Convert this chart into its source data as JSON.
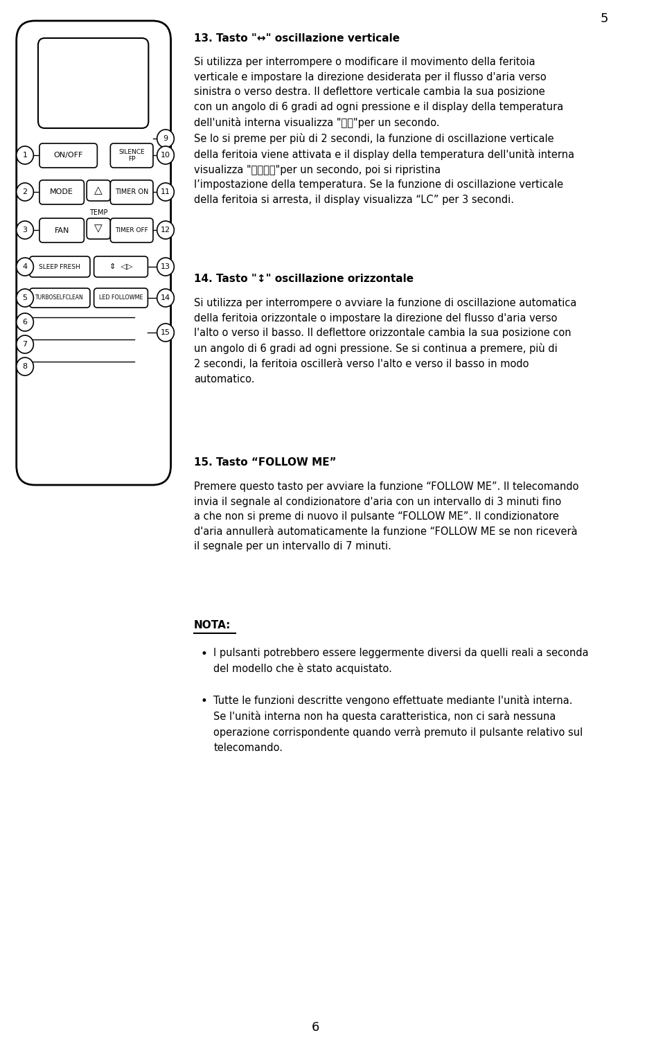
{
  "page_num_top": "5",
  "page_num_bottom": "6",
  "bg_color": "#ffffff",
  "text_color": "#000000",
  "section13_title": "13. Tasto \"↔\" oscillazione verticale",
  "section14_title": "14. Tasto \"↕\" oscillazione orizzontale",
  "section15_title": "15. Tasto “FOLLOW ME”",
  "nota_title": "NOTA:",
  "nota_bullet1": "I pulsanti potrebbero essere leggermente diversi da quelli reali a seconda del modello che è stato acquistato.",
  "nota_bullet2": "Tutte le funzioni descritte vengono effettuate mediante l'unità interna. Se l'unità interna non ha questa caratteristica, non ci sarà nessuna operazione corrispondente quando verrà premuto il pulsante relativo sul telecomando."
}
